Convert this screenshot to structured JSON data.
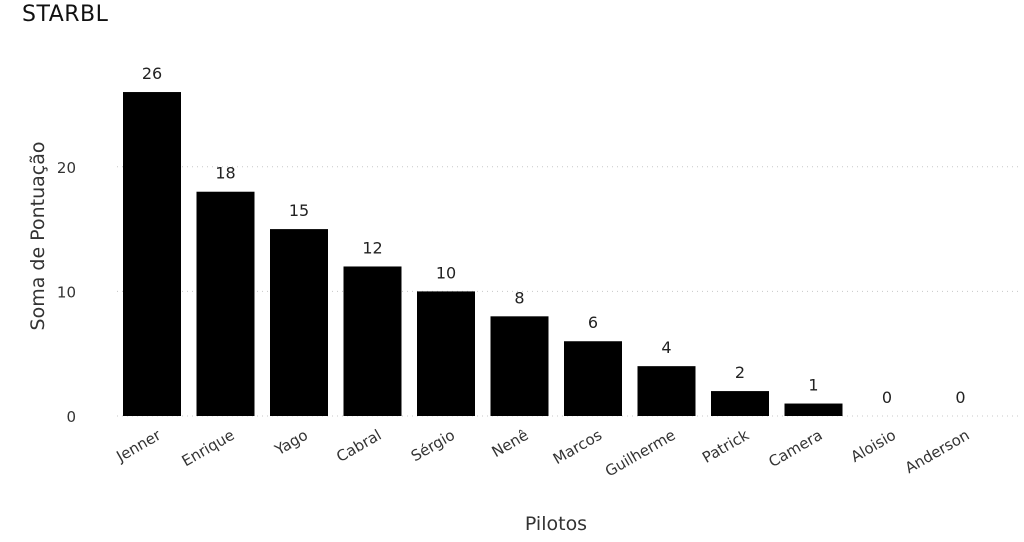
{
  "chart_data": {
    "type": "bar",
    "title": "STARBL",
    "xlabel": "Pilotos",
    "ylabel": "Soma de Pontuação",
    "categories": [
      "Jenner",
      "Enrique",
      "Yago",
      "Cabral",
      "Sérgio",
      "Nenê",
      "Marcos",
      "Guilherme",
      "Patrick",
      "Camera",
      "Aloisio",
      "Anderson"
    ],
    "values": [
      26,
      18,
      15,
      12,
      10,
      8,
      6,
      4,
      2,
      1,
      0,
      0
    ],
    "ylim": [
      0,
      26
    ],
    "yticks": [
      0,
      10,
      20
    ],
    "grid": true,
    "bar_color": "#000000",
    "data_labels": true
  }
}
